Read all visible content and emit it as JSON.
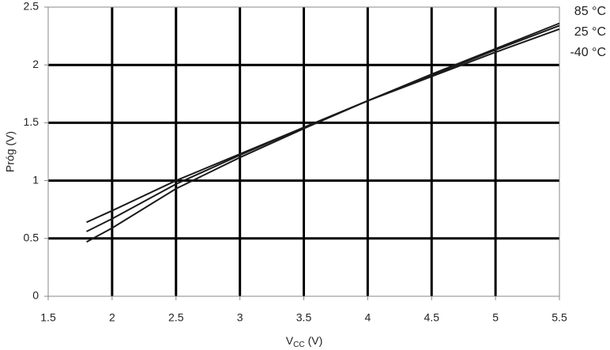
{
  "chart_data": {
    "type": "line",
    "x_label": [
      "V",
      "CC",
      "(V)"
    ],
    "y_label": "Próg (V)",
    "x": [
      1.8,
      2,
      2.5,
      3,
      3.5,
      4,
      4.5,
      5,
      5.5
    ],
    "series": [
      {
        "name": "85 °C",
        "color": "#1a1a1a",
        "values": [
          0.47,
          0.59,
          0.93,
          1.2,
          1.45,
          1.69,
          1.92,
          2.14,
          2.36
        ]
      },
      {
        "name": "25 °C",
        "color": "#1a1a1a",
        "values": [
          0.56,
          0.67,
          0.97,
          1.22,
          1.46,
          1.69,
          1.91,
          2.13,
          2.34
        ]
      },
      {
        "name": "-40 °C",
        "color": "#1a1a1a",
        "values": [
          0.64,
          0.74,
          1.0,
          1.23,
          1.46,
          1.69,
          1.9,
          2.11,
          2.31
        ]
      }
    ],
    "xlim": [
      1.5,
      5.5
    ],
    "xticks": [
      1.5,
      2,
      2.5,
      3,
      3.5,
      4,
      4.5,
      5,
      5.5
    ],
    "ylim": [
      0,
      2.5
    ],
    "yticks": [
      0,
      0.5,
      1,
      1.5,
      2,
      2.5
    ],
    "grid": true
  }
}
